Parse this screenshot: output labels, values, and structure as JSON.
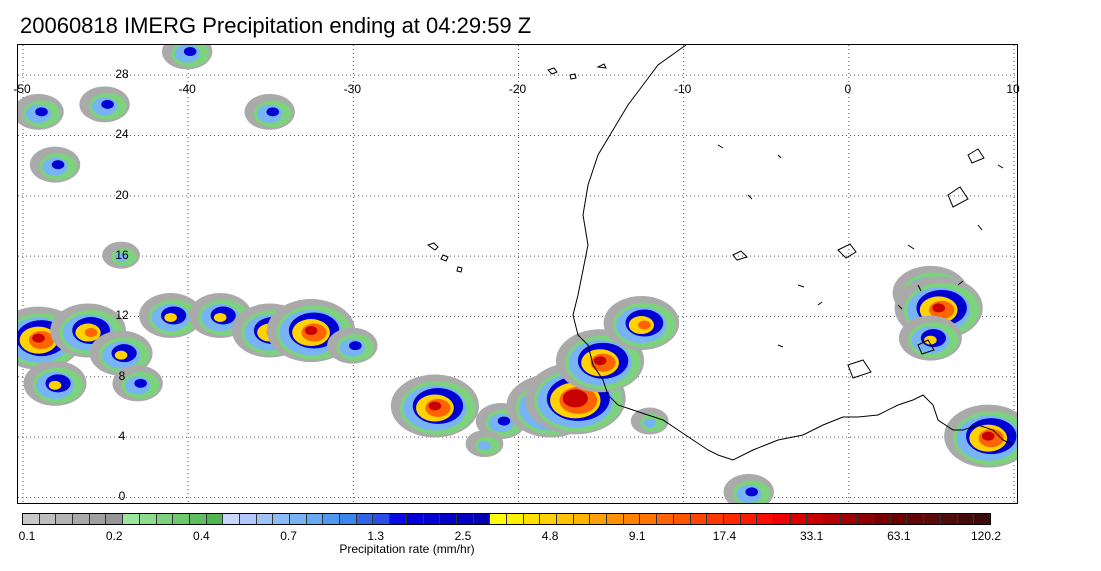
{
  "title": "20060818 IMERG Precipitation ending at 04:29:59 Z",
  "map": {
    "lon_range": [
      -50,
      10
    ],
    "lat_range": [
      -0.5,
      30
    ],
    "lon_ticks": [
      "-50",
      "-40",
      "-30",
      "-20",
      "-10",
      "0",
      "10"
    ],
    "lat_ticks": [
      "0",
      "4",
      "8",
      "12",
      "16",
      "20",
      "24",
      "28"
    ],
    "grid": "dotted",
    "coastline_color": "#000000",
    "land_outline": "West Africa coastline",
    "precip_cells": [
      {
        "lon": -49,
        "lat": 10.5,
        "level": 6
      },
      {
        "lon": -46,
        "lat": 11.0,
        "level": 5
      },
      {
        "lon": -44,
        "lat": 9.5,
        "level": 4
      },
      {
        "lon": -41,
        "lat": 12.0,
        "level": 4
      },
      {
        "lon": -38,
        "lat": 12.0,
        "level": 4
      },
      {
        "lon": -35,
        "lat": 11.0,
        "level": 5
      },
      {
        "lon": -32.5,
        "lat": 11.0,
        "level": 6
      },
      {
        "lon": -30,
        "lat": 10.0,
        "level": 3
      },
      {
        "lon": -25,
        "lat": 6.0,
        "level": 6
      },
      {
        "lon": -21,
        "lat": 5.0,
        "level": 3
      },
      {
        "lon": -18,
        "lat": 6.0,
        "level": 6
      },
      {
        "lon": -16.5,
        "lat": 6.5,
        "level": 7
      },
      {
        "lon": -15,
        "lat": 9.0,
        "level": 6
      },
      {
        "lon": -12.5,
        "lat": 11.5,
        "level": 5
      },
      {
        "lon": 5,
        "lat": 13.5,
        "level": 5
      },
      {
        "lon": 5.5,
        "lat": 12.5,
        "level": 6
      },
      {
        "lon": 5,
        "lat": 10.5,
        "level": 4
      },
      {
        "lon": 8.5,
        "lat": 4.0,
        "level": 6
      },
      {
        "lon": -49,
        "lat": 25.5,
        "level": 3
      },
      {
        "lon": -45,
        "lat": 26.0,
        "level": 3
      },
      {
        "lon": -40,
        "lat": 29.5,
        "level": 3
      },
      {
        "lon": -35,
        "lat": 25.5,
        "level": 3
      },
      {
        "lon": -48,
        "lat": 22.0,
        "level": 3
      },
      {
        "lon": -44,
        "lat": 16.0,
        "level": 2
      },
      {
        "lon": -48,
        "lat": 7.5,
        "level": 4
      },
      {
        "lon": -43,
        "lat": 7.5,
        "level": 3
      },
      {
        "lon": -22,
        "lat": 3.5,
        "level": 2
      },
      {
        "lon": -12,
        "lat": 5.0,
        "level": 2
      },
      {
        "lon": -6,
        "lat": 0.3,
        "level": 3
      }
    ]
  },
  "colorbar": {
    "title": "Precipitation rate (mm/hr)",
    "labels": [
      "0.1",
      "0.2",
      "0.4",
      "0.7",
      "1.3",
      "2.5",
      "4.8",
      "9.1",
      "17.4",
      "33.1",
      "63.1",
      "120.2"
    ],
    "colors": [
      "#c8c8c8",
      "#bebebe",
      "#b4b4b4",
      "#aaaaaa",
      "#a0a0a0",
      "#969696",
      "#9be69b",
      "#8cdc8c",
      "#7dd27d",
      "#6ec86e",
      "#5fbe5f",
      "#50b450",
      "#c8d7ff",
      "#b4c8ff",
      "#a0c3f5",
      "#8cbcf5",
      "#78b4f5",
      "#64aaf5",
      "#5099f0",
      "#3c87eb",
      "#3264e6",
      "#2850e6",
      "#0a0ae6",
      "#0000dc",
      "#0000d2",
      "#0000c8",
      "#0000be",
      "#0000b4",
      "#ffff00",
      "#fff000",
      "#ffe100",
      "#ffd200",
      "#ffc300",
      "#ffb400",
      "#ffa000",
      "#ff9100",
      "#ff8200",
      "#ff7300",
      "#ff6400",
      "#ff5500",
      "#ff4600",
      "#ff3700",
      "#ff2800",
      "#ff1900",
      "#ff0a00",
      "#f00000",
      "#dc0000",
      "#c80000",
      "#b40000",
      "#a00000",
      "#8c0000",
      "#780000",
      "#6e0000",
      "#640505",
      "#5a0a0a",
      "#500a0a",
      "#460a0a",
      "#3c0a0a"
    ]
  }
}
